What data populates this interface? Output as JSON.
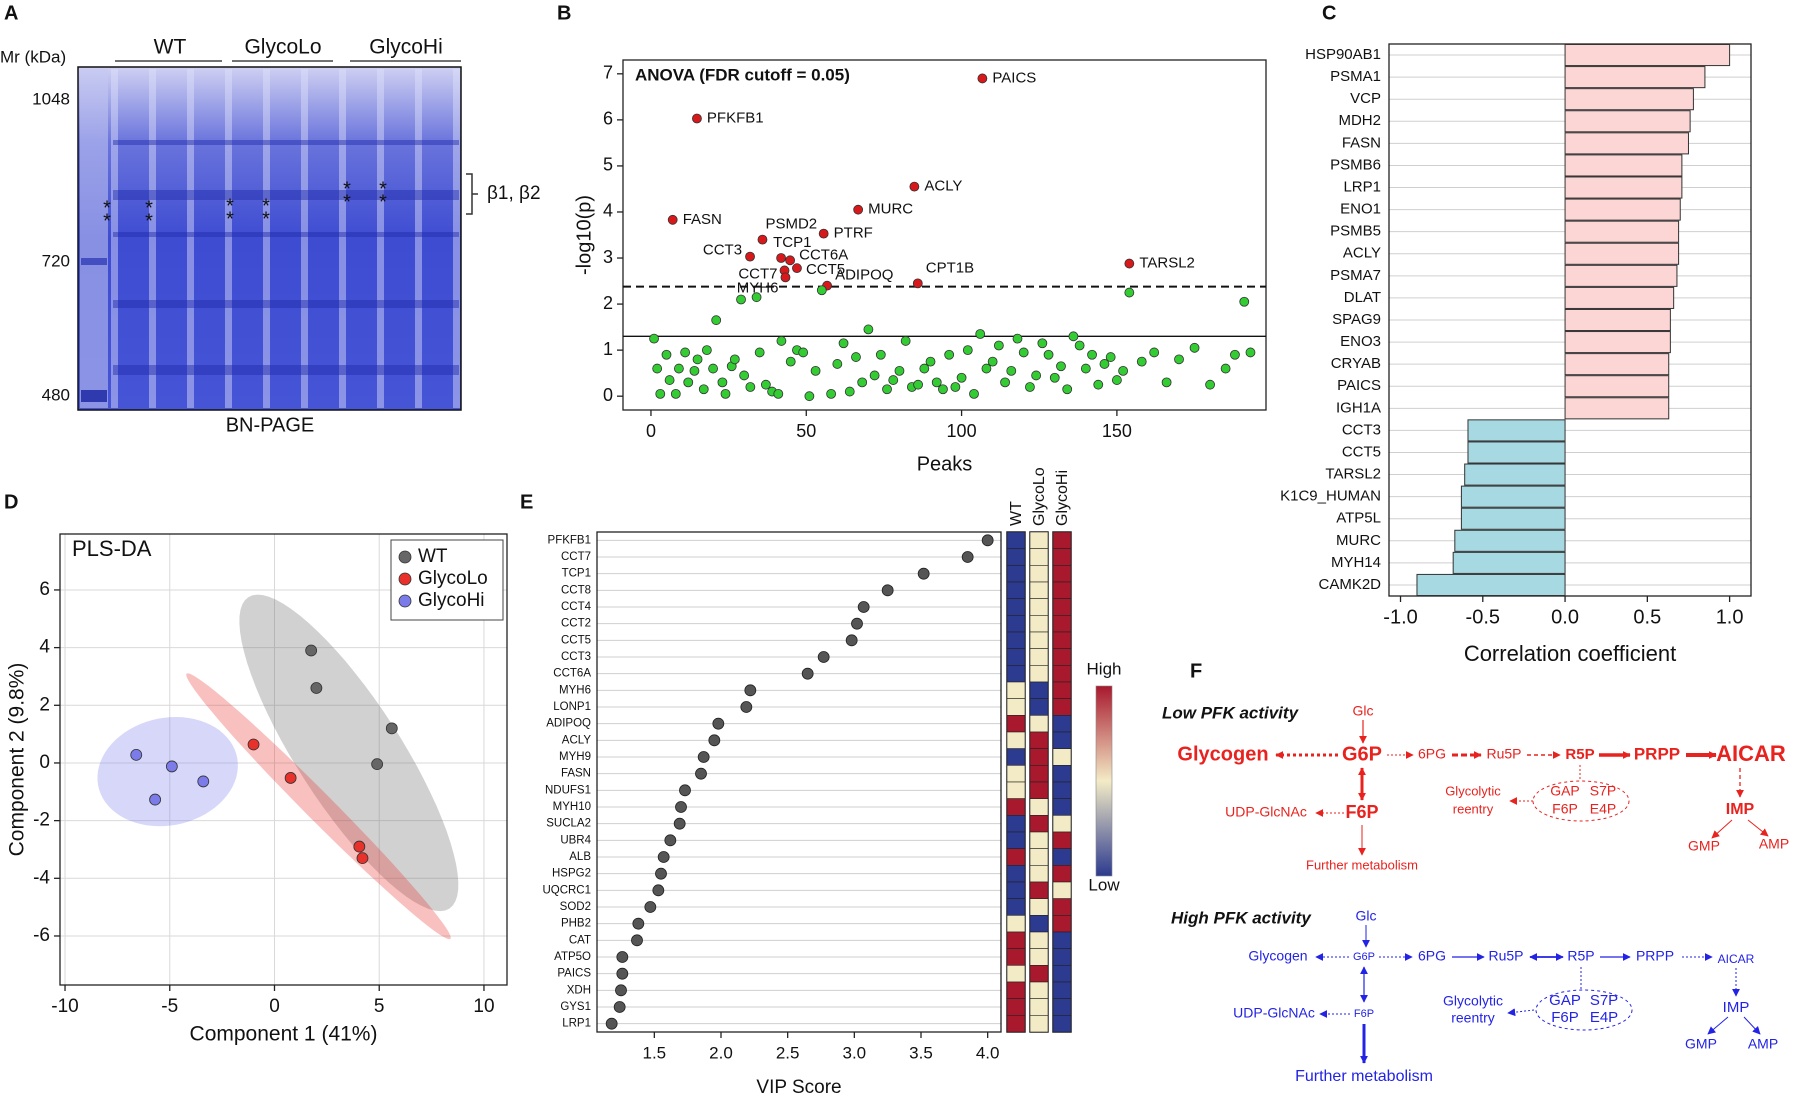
{
  "gel": {
    "label": "A",
    "axis_label": "Mr (kDa)",
    "markers": [
      1048,
      720,
      480
    ],
    "groups": [
      "WT",
      "GlycoLo",
      "GlycoHi"
    ],
    "band_label": "β1, β2",
    "star": "*",
    "caption": "BN-PAGE"
  },
  "chart_data": [
    {
      "type": "scatter",
      "label": "B",
      "annotation": "ANOVA (FDR cutoff = 0.05)",
      "xlabel": "Peaks",
      "ylabel": "-log10(p)",
      "xlim": [
        -9,
        198
      ],
      "ylim": [
        -0.3,
        7.3
      ],
      "xticks": [
        0,
        50,
        100,
        150
      ],
      "yticks": [
        0,
        1,
        2,
        3,
        4,
        5,
        6,
        7
      ],
      "grid": false,
      "hlines": [
        {
          "value": 2.38,
          "style": "dashed"
        },
        {
          "value": 1.3,
          "style": "solid"
        }
      ],
      "series": [
        {
          "color": "#d7191c",
          "x": [
            106.7,
            14.8,
            84.8,
            66.7,
            7.0,
            55.6,
            35.9,
            41.9,
            31.9,
            44.8,
            43.0,
            47.0,
            43.3,
            56.7,
            85.9,
            154.0
          ],
          "values": [
            6.9,
            6.03,
            4.55,
            4.05,
            3.83,
            3.53,
            3.4,
            3.0,
            3.03,
            2.95,
            2.73,
            2.78,
            2.58,
            2.4,
            2.45,
            2.88
          ],
          "point_labels": [
            "PAICS",
            "PFKFB1",
            "ACLY",
            "MURC",
            "FASN",
            "PTRF",
            "PSMD2",
            "TCP1",
            "CCT3",
            "CCT6A",
            "CCT7",
            "CCT5",
            "MYH6",
            "ADIPOQ",
            "CPT1B",
            "TARSL2"
          ]
        },
        {
          "color": "#33cc33",
          "x": [
            1,
            2,
            3,
            5,
            6,
            8,
            9,
            11,
            12,
            14,
            15,
            17,
            18,
            20,
            21,
            23,
            24,
            26,
            27,
            29,
            30,
            32,
            34,
            35,
            37,
            39,
            41,
            42,
            45,
            47,
            49,
            51,
            53,
            55,
            58,
            60,
            62,
            64,
            66,
            68,
            70,
            72,
            74,
            76,
            78,
            80,
            82,
            84,
            86,
            88,
            90,
            92,
            94,
            96,
            98,
            100,
            102,
            104,
            106,
            108,
            110,
            112,
            114,
            116,
            118,
            120,
            122,
            124,
            126,
            128,
            130,
            132,
            134,
            136,
            138,
            140,
            142,
            144,
            146,
            148,
            150,
            152,
            154,
            158,
            162,
            166,
            170,
            175,
            180,
            185,
            188,
            191,
            193
          ],
          "values": [
            1.25,
            0.6,
            0.05,
            0.9,
            0.35,
            0.05,
            0.6,
            0.95,
            0.3,
            0.55,
            0.8,
            0.15,
            1.0,
            0.6,
            1.65,
            0.3,
            0.05,
            0.65,
            0.8,
            2.1,
            0.45,
            0.2,
            2.15,
            0.95,
            0.25,
            0.1,
            0.05,
            1.2,
            0.75,
            1.0,
            0.95,
            0.0,
            0.55,
            2.3,
            0.05,
            0.7,
            1.15,
            0.1,
            0.85,
            0.3,
            1.45,
            0.45,
            0.9,
            0.15,
            0.35,
            0.55,
            1.2,
            0.2,
            0.25,
            0.6,
            0.75,
            0.3,
            0.15,
            0.9,
            0.2,
            0.4,
            1.0,
            0.05,
            1.35,
            0.6,
            0.75,
            1.1,
            0.3,
            0.55,
            1.25,
            0.95,
            0.2,
            0.45,
            1.15,
            0.9,
            0.4,
            0.65,
            0.15,
            1.3,
            1.1,
            0.6,
            0.9,
            0.25,
            0.7,
            0.85,
            0.35,
            0.55,
            2.25,
            0.75,
            0.95,
            0.3,
            0.8,
            1.05,
            0.25,
            0.6,
            0.9,
            2.05,
            0.95
          ]
        }
      ]
    },
    {
      "type": "barh",
      "label": "C",
      "xlabel": "Correlation coefficient",
      "categories": [
        "HSP90AB1",
        "PSMA1",
        "VCP",
        "MDH2",
        "FASN",
        "PSMB6",
        "LRP1",
        "ENO1",
        "PSMB5",
        "ACLY",
        "PSMA7",
        "DLAT",
        "SPAG9",
        "ENO3",
        "CRYAB",
        "PAICS",
        "IGH1A",
        "CCT3",
        "CCT5",
        "TARSL2",
        "K1C9_HUMAN",
        "ATP5L",
        "MURC",
        "MYH14",
        "CAMK2D"
      ],
      "values": [
        1.0,
        0.85,
        0.78,
        0.76,
        0.75,
        0.71,
        0.71,
        0.7,
        0.69,
        0.69,
        0.68,
        0.66,
        0.64,
        0.64,
        0.63,
        0.63,
        0.63,
        -0.59,
        -0.59,
        -0.61,
        -0.63,
        -0.63,
        -0.67,
        -0.68,
        -0.9
      ],
      "positive_color": "#fcd5d5",
      "negative_color": "#a6d9e2",
      "xlim": [
        -1.07,
        1.13
      ],
      "xticks": [
        {
          "value": -1,
          "label": "-1.0"
        },
        {
          "value": -0.5,
          "label": "-0.5"
        },
        {
          "value": 0,
          "label": "0.0"
        },
        {
          "value": 0.5,
          "label": "0.5"
        },
        {
          "value": 1,
          "label": "1.0"
        }
      ],
      "grid": true
    },
    {
      "type": "scatter",
      "label": "D",
      "annotation": "PLS-DA",
      "xlabel": "Component 1 (41%)",
      "ylabel": "Component 2 (9.8%)",
      "xlim": [
        -10.24,
        11.1
      ],
      "ylim": [
        -7.7,
        7.94
      ],
      "xticks": [
        -10,
        -5,
        0,
        5,
        10
      ],
      "yticks": [
        -6,
        -4,
        -2,
        0,
        2,
        4,
        6
      ],
      "grid": true,
      "legend": "upper right",
      "series": [
        {
          "name": "WT",
          "color": "#666666",
          "x": [
            1.75,
            2.0,
            5.6,
            4.9
          ],
          "values": [
            3.9,
            2.6,
            1.2,
            -0.04
          ],
          "ellipse": {
            "center": [
              3.55,
              0.35
            ],
            "axes": [
              [
                4.8,
                -5.4
              ],
              [
                2.07,
                0.98
              ]
            ]
          }
        },
        {
          "name": "GlycoLo",
          "color": "#e8312a",
          "x": [
            -1.0,
            0.77,
            4.05,
            4.2
          ],
          "values": [
            0.64,
            -0.52,
            -2.9,
            -3.3
          ],
          "ellipse": {
            "center": [
              2.1,
              -1.5
            ],
            "axes": [
              [
                6.3,
                -4.6
              ],
              [
                0.47,
                0.34
              ]
            ]
          }
        },
        {
          "name": "GlycoHi",
          "color": "#7b7bea",
          "x": [
            -6.6,
            -4.9,
            -5.7,
            -3.4
          ],
          "values": [
            0.28,
            -0.12,
            -1.27,
            -0.64
          ],
          "ellipse": {
            "center": [
              -5.1,
              -0.3
            ],
            "axes": [
              [
                3.35,
                0.3
              ],
              [
                -0.15,
                1.87
              ]
            ]
          }
        }
      ]
    },
    {
      "type": "dot",
      "label": "E",
      "xlabel": "VIP Score",
      "categories": [
        "PFKFB1",
        "CCT7",
        "TCP1",
        "CCT8",
        "CCT4",
        "CCT2",
        "CCT5",
        "CCT3",
        "CCT6A",
        "MYH6",
        "LONP1",
        "ADIPOQ",
        "ACLY",
        "MYH9",
        "FASN",
        "NDUFS1",
        "MYH10",
        "SUCLA2",
        "UBR4",
        "ALB",
        "HSPG2",
        "UQCRC1",
        "SOD2",
        "PHB2",
        "CAT",
        "ATP5O",
        "PAICS",
        "XDH",
        "GYS1",
        "LRP1"
      ],
      "values": [
        4.0,
        3.85,
        3.52,
        3.25,
        3.07,
        3.02,
        2.98,
        2.77,
        2.65,
        2.22,
        2.19,
        1.98,
        1.95,
        1.87,
        1.85,
        1.73,
        1.7,
        1.69,
        1.62,
        1.57,
        1.55,
        1.53,
        1.47,
        1.38,
        1.37,
        1.26,
        1.26,
        1.25,
        1.24,
        1.18
      ],
      "color": "#555555",
      "xlim": [
        1.07,
        4.1
      ],
      "xticks": [
        1.5,
        {
          "value": 2,
          "label": "2.0"
        },
        2.5,
        {
          "value": 3,
          "label": "3.0"
        },
        3.5,
        {
          "value": 4,
          "label": "4.0"
        }
      ],
      "grid": true,
      "heatmap": {
        "columns": [
          "WT",
          "GlycoLo",
          "GlycoHi"
        ],
        "colors": [
          "#2c3a8f",
          "#f3ebc6",
          "#a8192e"
        ],
        "scale_labels": [
          "High",
          "Low"
        ],
        "values": [
          [
            -1,
            0,
            1
          ],
          [
            -1,
            0,
            1
          ],
          [
            -1,
            0,
            1
          ],
          [
            -1,
            0,
            1
          ],
          [
            -1,
            0,
            1
          ],
          [
            -1,
            0,
            1
          ],
          [
            -1,
            0,
            1
          ],
          [
            -1,
            0,
            1
          ],
          [
            -1,
            0,
            1
          ],
          [
            0,
            -1,
            1
          ],
          [
            0,
            -1,
            1
          ],
          [
            1,
            0,
            -1
          ],
          [
            0,
            1,
            -1
          ],
          [
            -1,
            1,
            0
          ],
          [
            0,
            1,
            -1
          ],
          [
            0,
            1,
            -1
          ],
          [
            1,
            0,
            -1
          ],
          [
            -1,
            1,
            0
          ],
          [
            -1,
            0,
            1
          ],
          [
            1,
            0,
            -1
          ],
          [
            -1,
            0,
            1
          ],
          [
            -1,
            1,
            0
          ],
          [
            -1,
            0,
            1
          ],
          [
            0,
            -1,
            1
          ],
          [
            1,
            0,
            -1
          ],
          [
            1,
            0,
            -1
          ],
          [
            0,
            1,
            -1
          ],
          [
            1,
            0,
            -1
          ],
          [
            1,
            0,
            -1
          ],
          [
            1,
            0,
            -1
          ]
        ]
      }
    }
  ],
  "pathway": {
    "label": "F",
    "low": {
      "title": "Low PFK activity",
      "nodes": [
        "Glc",
        "Glycogen",
        "G6P",
        "6PG",
        "Ru5P",
        "R5P",
        "PRPP",
        "AICAR",
        "UDP-GlcNAc",
        "F6P",
        "Further metabolism",
        "Glycolytic",
        "reentry",
        "GAP",
        "S7P",
        "F6P",
        "E4P",
        "IMP",
        "GMP",
        "AMP"
      ]
    },
    "high": {
      "title": "High PFK activity",
      "nodes": [
        "Glc",
        "Glycogen",
        "G6P",
        "6PG",
        "Ru5P",
        "R5P",
        "PRPP",
        "AICAR",
        "UDP-GlcNAc",
        "F6P",
        "Further metabolism",
        "Glycolytic",
        "reentry",
        "GAP",
        "S7P",
        "F6P",
        "E4P",
        "IMP",
        "GMP",
        "AMP"
      ]
    }
  }
}
